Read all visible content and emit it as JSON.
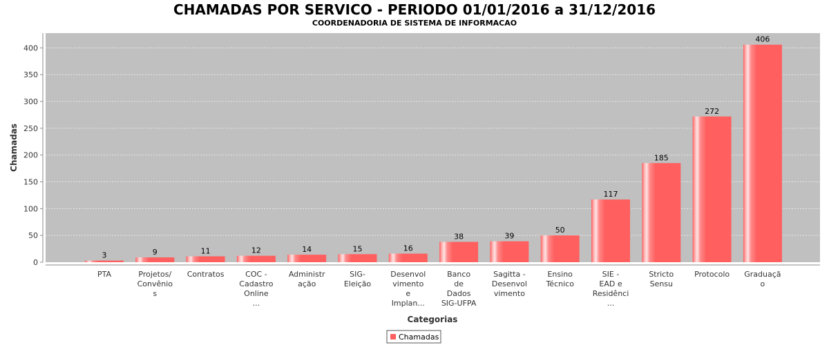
{
  "chart_data": {
    "type": "bar",
    "title": "CHAMADAS POR SERVICO - PERIODO 01/01/2016 a 31/12/2016",
    "subtitle": "COORDENADORIA DE SISTEMA DE INFORMACAO",
    "xlabel": "Categorias",
    "ylabel": "Chamadas",
    "ylim": [
      0,
      420
    ],
    "yticks": [
      0,
      50,
      100,
      150,
      200,
      250,
      300,
      350,
      400
    ],
    "grid": true,
    "legend": "bottom-center",
    "categories": [
      [
        "PTA"
      ],
      [
        "Projetos/",
        "Convênio",
        "s"
      ],
      [
        "Contratos"
      ],
      [
        "COC -",
        "Cadastro",
        "Online",
        "..."
      ],
      [
        "Administr",
        "ação"
      ],
      [
        "SIG-",
        "Eleição"
      ],
      [
        "Desenvol",
        "vimento",
        "e",
        "Implan..."
      ],
      [
        "Banco",
        "de",
        "Dados",
        "SIG-UFPA"
      ],
      [
        "Sagitta -",
        "Desenvol",
        "vimento"
      ],
      [
        "Ensino",
        "Técnico"
      ],
      [
        "SIE -",
        "EAD e",
        "Residênci",
        "..."
      ],
      [
        "Stricto",
        "Sensu"
      ],
      [
        "Protocolo"
      ],
      [
        "Graduaçã",
        "o"
      ]
    ],
    "series": [
      {
        "name": "Chamadas",
        "values": [
          3,
          9,
          11,
          12,
          14,
          15,
          16,
          38,
          39,
          50,
          117,
          185,
          272,
          406
        ]
      }
    ],
    "colors": {
      "bar": "#ff5f5f",
      "bar_highlight": "#ffe4e4",
      "plot_bg": "#c0c0c0",
      "grid": "#e8e8e8"
    }
  }
}
